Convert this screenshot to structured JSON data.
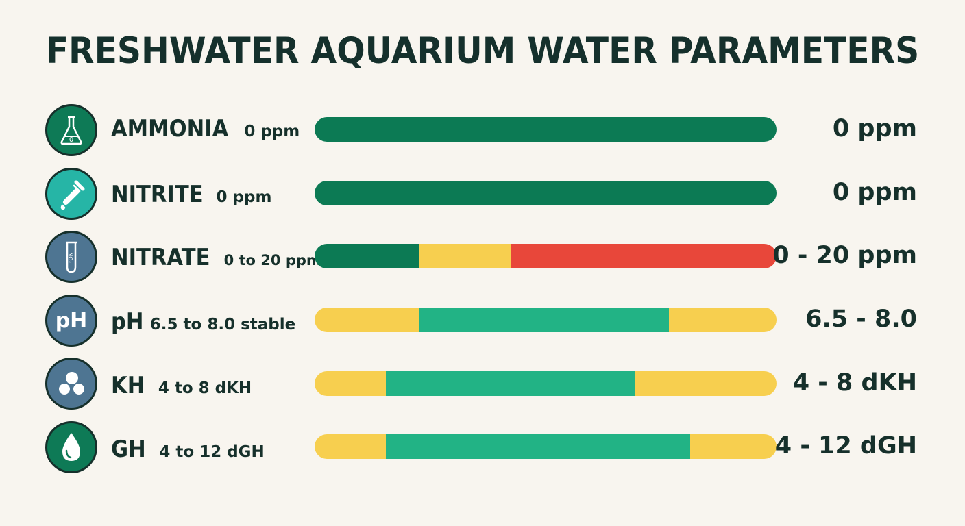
{
  "title": "FRESHWATER AQUARIUM WATER PARAMETERS",
  "colors": {
    "background": "#f8f5ef",
    "text": "#16302b",
    "safe_dark_green": "#0c7a54",
    "safe_green": "#22b385",
    "caution_yellow": "#f7cf4f",
    "danger_red": "#e8473a"
  },
  "parameters": [
    {
      "name": "AMMONIA",
      "range_text": "0 ppm",
      "value": "0 ppm",
      "icon": "flask-icon",
      "icon_color": "#0e7a56",
      "bar": [
        {
          "fraction": 1.0,
          "color": "#0c7a54"
        }
      ]
    },
    {
      "name": "NITRITE",
      "range_text": "0 ppm",
      "value": "0 ppm",
      "icon": "dropper-icon",
      "icon_color": "#26b5a6",
      "bar": [
        {
          "fraction": 1.0,
          "color": "#0c7a54"
        }
      ]
    },
    {
      "name": "NITRATE",
      "range_text": "0 to 20 ppm",
      "value": "0 - 20 ppm",
      "icon": "test-tube-icon",
      "icon_color": "#4e7592",
      "icon_text": "NO₃",
      "bar": [
        {
          "fraction": 0.227,
          "color": "#0c7a54"
        },
        {
          "fraction": 0.199,
          "color": "#f7cf4f"
        },
        {
          "fraction": 0.574,
          "color": "#e8473a"
        }
      ]
    },
    {
      "name": "pH",
      "range_text": "6.5 to 8.0 stable",
      "value": "6.5 - 8.0",
      "icon": "ph-icon",
      "icon_color": "#4e7592",
      "icon_text": "pH",
      "bar": [
        {
          "fraction": 0.227,
          "color": "#f7cf4f"
        },
        {
          "fraction": 0.54,
          "color": "#22b385"
        },
        {
          "fraction": 0.233,
          "color": "#f7cf4f"
        }
      ]
    },
    {
      "name": "KH",
      "range_text": "4 to 8 dKH",
      "value": "4 - 8 dKH",
      "icon": "minerals-icon",
      "icon_color": "#4e7592",
      "bar": [
        {
          "fraction": 0.155,
          "color": "#f7cf4f"
        },
        {
          "fraction": 0.54,
          "color": "#22b385"
        },
        {
          "fraction": 0.305,
          "color": "#f7cf4f"
        }
      ]
    },
    {
      "name": "GH",
      "range_text": "4 to 12 dGH",
      "value": "4 - 12 dGH",
      "icon": "water-drop-icon",
      "icon_color": "#0e7a56",
      "bar": [
        {
          "fraction": 0.155,
          "color": "#f7cf4f"
        },
        {
          "fraction": 0.658,
          "color": "#22b385"
        },
        {
          "fraction": 0.187,
          "color": "#f7cf4f"
        }
      ]
    }
  ]
}
